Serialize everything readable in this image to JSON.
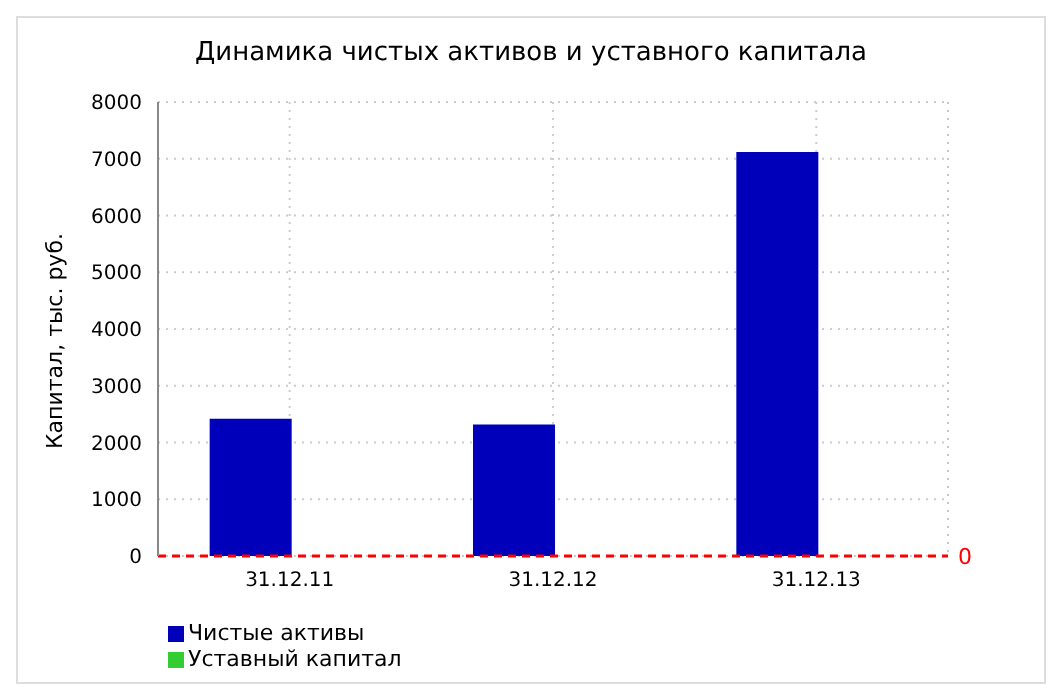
{
  "chart_data": {
    "type": "bar",
    "title": "Динамика чистых активов и уставного капитала",
    "ylabel": "Капитал, тыс. руб.",
    "categories": [
      "31.12.11",
      "31.12.12",
      "31.12.13"
    ],
    "series": [
      {
        "name": "Чистые активы",
        "color": "#0000bb",
        "values": [
          2400,
          2300,
          7100
        ]
      },
      {
        "name": "Уставный капитал",
        "color": "#33cc33",
        "values": [
          null,
          null,
          null
        ]
      }
    ],
    "ylim": [
      0,
      8000
    ],
    "yticks": [
      0,
      1000,
      2000,
      3000,
      4000,
      5000,
      6000,
      7000,
      8000
    ],
    "grid": true,
    "legend": "bottom left",
    "ref_lines": [
      {
        "axis": "y",
        "value": 0,
        "label": "0",
        "color": "#ff0000",
        "line_style": "dashed"
      }
    ]
  }
}
